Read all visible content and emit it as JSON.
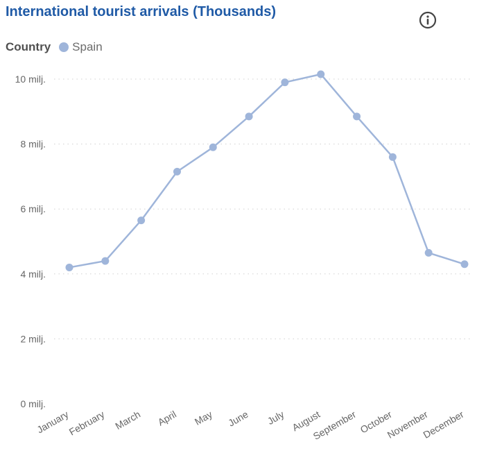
{
  "header": {
    "title": "International tourist arrivals (Thousands)",
    "info_icon": "info-circle-icon"
  },
  "legend": {
    "title": "Country",
    "items": [
      {
        "label": "Spain",
        "color": "#9fb5da"
      }
    ]
  },
  "chart_data": {
    "type": "line",
    "title": "International tourist arrivals (Thousands)",
    "xlabel": "",
    "ylabel": "",
    "categories": [
      "January",
      "February",
      "March",
      "April",
      "May",
      "June",
      "July",
      "August",
      "September",
      "October",
      "November",
      "December"
    ],
    "series": [
      {
        "name": "Spain",
        "color": "#9fb5da",
        "values": [
          4.2,
          4.4,
          5.65,
          7.15,
          7.9,
          8.85,
          9.9,
          10.15,
          8.85,
          7.6,
          4.65,
          4.3
        ]
      }
    ],
    "ylim": [
      0,
      10
    ],
    "yticks": [
      0,
      2,
      4,
      6,
      8,
      10
    ],
    "ytick_labels": [
      "0 milj.",
      "2 milj.",
      "4 milj.",
      "6 milj.",
      "8 milj.",
      "10 milj."
    ],
    "grid": true,
    "legend_position": "top-left",
    "markers": true
  }
}
